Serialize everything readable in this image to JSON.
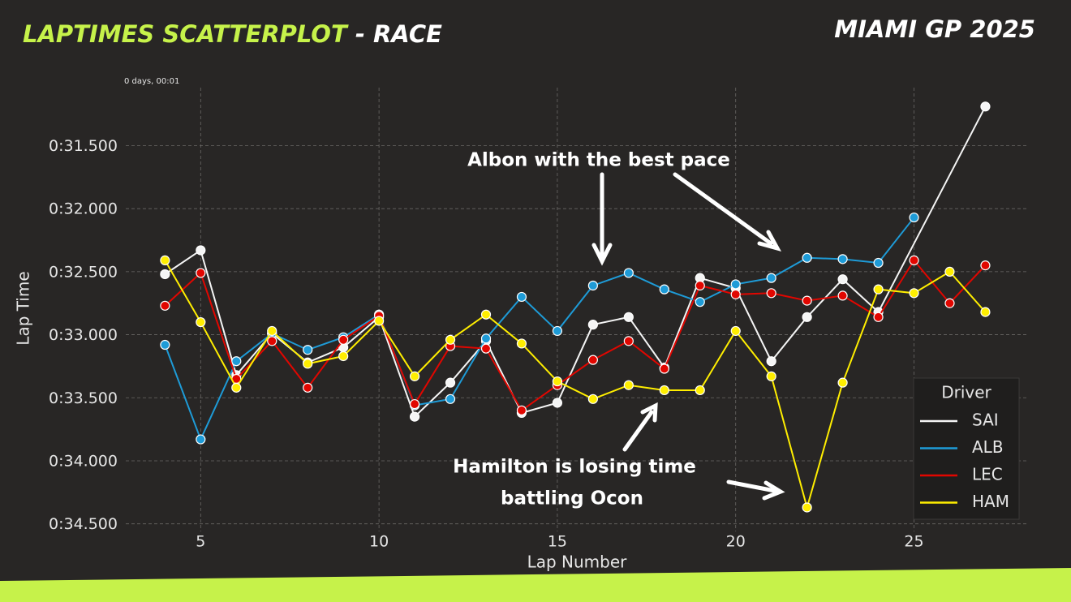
{
  "title": "LAPTIMES SCATTERPLOT",
  "title_suffix": " - RACE",
  "event": "MIAMI GP 2025",
  "chart_data": {
    "type": "line",
    "offset_label": "0 days, 00:01",
    "xlabel": "Lap Number",
    "ylabel": "Lap Time",
    "xlim": [
      2.9,
      28.15
    ],
    "xticks": [
      5,
      10,
      15,
      20,
      25
    ],
    "ylim": [
      34.56,
      31.04
    ],
    "yticks": [
      {
        "value": 31.5,
        "label": "0:31.500"
      },
      {
        "value": 32.0,
        "label": "0:32.000"
      },
      {
        "value": 32.5,
        "label": "0:32.500"
      },
      {
        "value": 33.0,
        "label": "0:33.000"
      },
      {
        "value": 33.5,
        "label": "0:33.500"
      },
      {
        "value": 34.0,
        "label": "0:34.000"
      },
      {
        "value": 34.5,
        "label": "0:34.500"
      }
    ],
    "grid": true,
    "legend_title": "Driver",
    "legend_position": "lower right",
    "series": [
      {
        "name": "SAI",
        "color": "#f5f5f5",
        "x": [
          4,
          5,
          6,
          7,
          8,
          9,
          10,
          11,
          12,
          13,
          14,
          15,
          16,
          17,
          18,
          19,
          20,
          21,
          22,
          23,
          24,
          27
        ],
        "values": [
          32.52,
          32.33,
          33.32,
          32.99,
          33.22,
          33.1,
          32.86,
          33.65,
          33.38,
          33.05,
          33.62,
          33.54,
          32.92,
          32.86,
          33.26,
          32.55,
          32.63,
          33.21,
          32.86,
          32.56,
          32.82,
          31.19
        ]
      },
      {
        "name": "ALB",
        "color": "#1e9bd7",
        "x": [
          4,
          5,
          6,
          7,
          8,
          9,
          10,
          11,
          12,
          13,
          14,
          15,
          16,
          17,
          18,
          19,
          20,
          21,
          22,
          23,
          24,
          25
        ],
        "values": [
          33.08,
          33.83,
          33.21,
          32.99,
          33.12,
          33.02,
          32.84,
          33.56,
          33.51,
          33.03,
          32.7,
          32.97,
          32.61,
          32.51,
          32.64,
          32.74,
          32.6,
          32.55,
          32.39,
          32.4,
          32.43,
          32.07
        ]
      },
      {
        "name": "LEC",
        "color": "#e10600",
        "x": [
          4,
          5,
          6,
          7,
          8,
          9,
          10,
          11,
          12,
          13,
          14,
          15,
          16,
          17,
          18,
          19,
          20,
          21,
          22,
          23,
          24,
          25,
          26,
          27
        ],
        "values": [
          32.77,
          32.51,
          33.35,
          33.05,
          33.42,
          33.04,
          32.85,
          33.55,
          33.09,
          33.11,
          33.6,
          33.4,
          33.2,
          33.05,
          33.27,
          32.61,
          32.68,
          32.67,
          32.73,
          32.69,
          32.86,
          32.41,
          32.75,
          32.45
        ]
      },
      {
        "name": "HAM",
        "color": "#ffee00",
        "x": [
          4,
          5,
          6,
          7,
          8,
          9,
          10,
          11,
          12,
          13,
          14,
          15,
          16,
          17,
          18,
          19,
          20,
          21,
          22,
          23,
          24,
          25,
          26,
          27
        ],
        "values": [
          32.41,
          32.9,
          33.42,
          32.97,
          33.23,
          33.17,
          32.89,
          33.33,
          33.04,
          32.84,
          33.07,
          33.37,
          33.51,
          33.4,
          33.44,
          33.44,
          32.97,
          33.33,
          34.37,
          33.38,
          32.64,
          32.67,
          32.5,
          32.82
        ]
      }
    ],
    "annotations": [
      "Albon with the best pace",
      "Hamilton is losing time",
      "battling Ocon"
    ]
  }
}
